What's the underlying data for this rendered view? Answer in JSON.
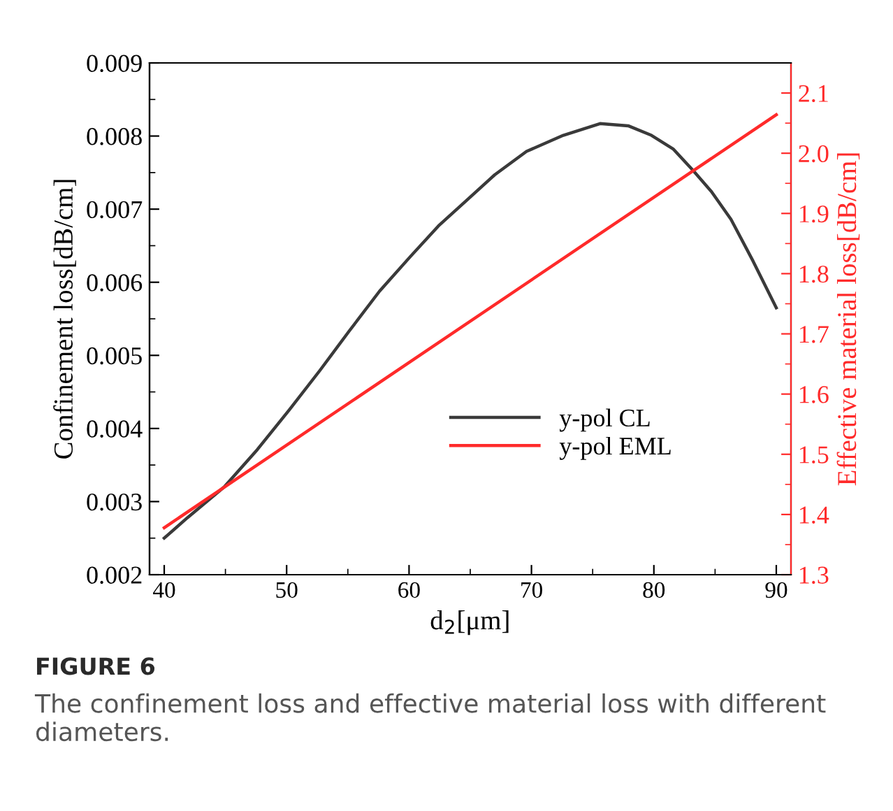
{
  "chart_data": {
    "type": "line",
    "xlabel": "d$_{2}$[μm]",
    "ylabel": "Confinement loss[dB/cm]",
    "y2label": "Effective material loss[dB/cm]",
    "annotations": [
      "FIGURE 6",
      "The confinement loss and effective material loss with different diameters."
    ],
    "xlim": [
      38.8,
      91.2
    ],
    "ylim": [
      0.002,
      0.009
    ],
    "y2lim": [
      1.3,
      2.15
    ],
    "xticks": [
      40,
      {
        "value": 45,
        "label": null
      },
      50,
      {
        "value": 55,
        "label": null
      },
      60,
      {
        "value": 65,
        "label": null
      },
      70,
      {
        "value": 75,
        "label": null
      },
      80,
      {
        "value": 85,
        "label": null
      },
      90
    ],
    "yticks": [
      0.002,
      {
        "value": 0.0025,
        "label": null
      },
      0.003,
      {
        "value": 0.0035,
        "label": null
      },
      0.004,
      {
        "value": 0.0045,
        "label": null
      },
      0.005,
      {
        "value": 0.0055,
        "label": null
      },
      0.006,
      {
        "value": 0.0065,
        "label": null
      },
      0.007,
      {
        "value": 0.0075,
        "label": null
      },
      0.008,
      {
        "value": 0.0085,
        "label": null
      },
      0.009
    ],
    "y2ticks": [
      1.3,
      {
        "value": 1.35,
        "label": null
      },
      1.4,
      {
        "value": 1.45,
        "label": null
      },
      1.5,
      {
        "value": 1.55,
        "label": null
      },
      1.6,
      {
        "value": 1.65,
        "label": null
      },
      1.7,
      {
        "value": 1.75,
        "label": null
      },
      1.8,
      {
        "value": 1.85,
        "label": null
      },
      1.9,
      {
        "value": 1.95,
        "label": null
      },
      {
        "value": 2.0,
        "label": "2.0"
      },
      {
        "value": 2.05,
        "label": null
      },
      2.1
    ],
    "legend": "bottom right",
    "grid": false,
    "marker": "none",
    "line_style": "solid",
    "series": [
      {
        "name": "y-pol CL",
        "color": "#3a3a3a",
        "x": [
          40,
          41.9,
          44.9,
          47.6,
          50.2,
          52.7,
          55.1,
          57.6,
          60.1,
          62.4,
          64.7,
          67.0,
          69.6,
          72.6,
          75.6,
          77.9,
          79.8,
          81.6,
          83.2,
          84.7,
          86.3,
          88.1,
          90
        ],
        "values": [
          0.0025,
          0.00278,
          0.0032,
          0.00371,
          0.00425,
          0.00479,
          0.00533,
          0.00588,
          0.00635,
          0.00677,
          0.00712,
          0.00747,
          0.00779,
          0.00801,
          0.00817,
          0.00814,
          0.00801,
          0.00782,
          0.00753,
          0.00724,
          0.00686,
          0.00629,
          0.00565
        ]
      },
      {
        "name": "y-pol EML",
        "color": "#ff2a2a",
        "axis": "y2",
        "x": [
          40,
          90
        ],
        "values": [
          1.378,
          2.064
        ]
      }
    ]
  }
}
